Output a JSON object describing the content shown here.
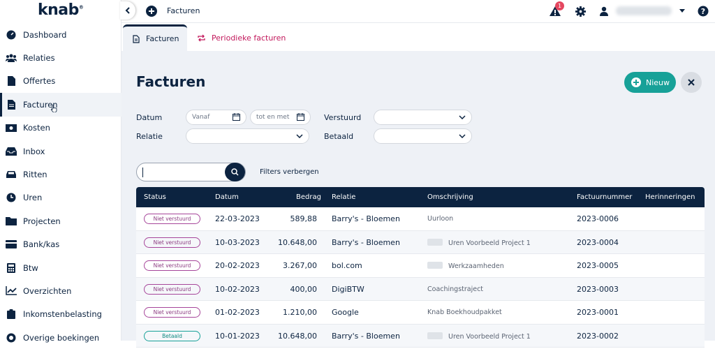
{
  "logo": "knab",
  "sidebar": {
    "items": [
      {
        "label": "Dashboard",
        "icon": "dashboard-gauge-icon"
      },
      {
        "label": "Relaties",
        "icon": "users-icon"
      },
      {
        "label": "Offertes",
        "icon": "file-icon"
      },
      {
        "label": "Facturen",
        "icon": "invoice-icon",
        "active": true
      },
      {
        "label": "Kosten",
        "icon": "money-icon"
      },
      {
        "label": "Inbox",
        "icon": "inbox-icon"
      },
      {
        "label": "Ritten",
        "icon": "car-icon"
      },
      {
        "label": "Uren",
        "icon": "clock-icon"
      },
      {
        "label": "Projecten",
        "icon": "folder-icon"
      },
      {
        "label": "Bank/kas",
        "icon": "bank-card-icon"
      },
      {
        "label": "Btw",
        "icon": "calculator-icon"
      },
      {
        "label": "Overzichten",
        "icon": "chart-icon"
      },
      {
        "label": "Inkomstenbelasting",
        "icon": "clipboard-icon"
      },
      {
        "label": "Overige boekingen",
        "icon": "lifebuoy-icon"
      }
    ]
  },
  "topbar": {
    "title": "Facturen",
    "notification_count": "1"
  },
  "tabs": [
    {
      "label": "Facturen"
    },
    {
      "label": "Periodieke facturen"
    }
  ],
  "page": {
    "title": "Facturen",
    "new_label": "Nieuw"
  },
  "filters": {
    "datum_label": "Datum",
    "vanaf_placeholder": "Vanaf",
    "totenmet_placeholder": "tot en met",
    "verstuurd_label": "Verstuurd",
    "relatie_label": "Relatie",
    "betaald_label": "Betaald",
    "toggle_label": "Filters verbergen"
  },
  "table": {
    "headers": {
      "status": "Status",
      "datum": "Datum",
      "bedrag": "Bedrag",
      "relatie": "Relatie",
      "omschrijving": "Omschrijving",
      "factuurnummer": "Factuurnummer",
      "herinneringen": "Herinneringen"
    },
    "rows": [
      {
        "status": "Niet verstuurd",
        "datum": "22-03-2023",
        "bedrag": "589,88",
        "relatie": "Barry's - Bloemen",
        "omschrijving": "Uurloon",
        "project": false,
        "factuurnummer": "2023-0006"
      },
      {
        "status": "Niet verstuurd",
        "datum": "10-03-2023",
        "bedrag": "10.648,00",
        "relatie": "Barry's - Bloemen",
        "omschrijving": "Uren Voorbeeld Project 1",
        "project": true,
        "factuurnummer": "2023-0004"
      },
      {
        "status": "Niet verstuurd",
        "datum": "20-02-2023",
        "bedrag": "3.267,00",
        "relatie": "bol.com",
        "omschrijving": "Werkzaamheden",
        "project": true,
        "factuurnummer": "2023-0005"
      },
      {
        "status": "Niet verstuurd",
        "datum": "10-02-2023",
        "bedrag": "400,00",
        "relatie": "DigiBTW",
        "omschrijving": "Coachingstraject",
        "project": false,
        "factuurnummer": "2023-0003"
      },
      {
        "status": "Niet verstuurd",
        "datum": "01-02-2023",
        "bedrag": "1.210,00",
        "relatie": "Google",
        "omschrijving": "Knab Boekhoudpakket",
        "project": false,
        "factuurnummer": "2023-0001"
      },
      {
        "status": "Betaald",
        "datum": "10-01-2023",
        "bedrag": "10.648,00",
        "relatie": "Barry's - Bloemen",
        "omschrijving": "Uren Voorbeeld Project 1",
        "project": true,
        "factuurnummer": "2023-0002"
      }
    ]
  },
  "colors": {
    "navy": "#0c2340",
    "teal": "#17a198",
    "pink": "#c2185b",
    "purple": "#a6459a"
  }
}
